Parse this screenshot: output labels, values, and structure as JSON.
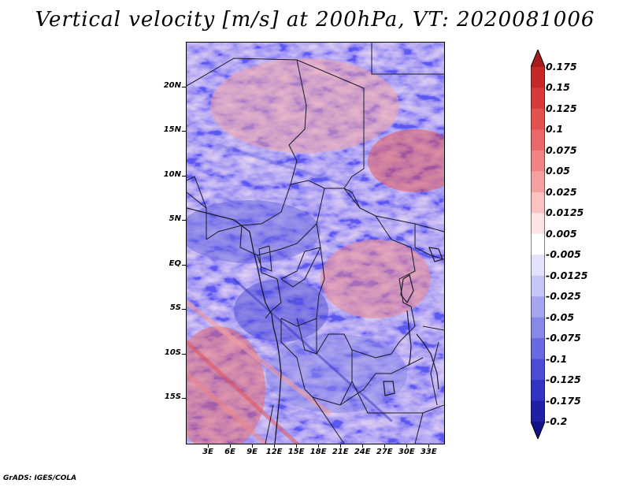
{
  "title": "Vertical velocity [m/s] at 200hPa, VT: 2020081006",
  "footer": "GrADS: IGES/COLA",
  "map": {
    "lat_range": [
      -20,
      25
    ],
    "lon_range": [
      0,
      35
    ],
    "lat_ticks": [
      {
        "value": 20,
        "label": "20N"
      },
      {
        "value": 15,
        "label": "15N"
      },
      {
        "value": 10,
        "label": "10N"
      },
      {
        "value": 5,
        "label": "5N"
      },
      {
        "value": 0,
        "label": "EQ"
      },
      {
        "value": -5,
        "label": "5S"
      },
      {
        "value": -10,
        "label": "10S"
      },
      {
        "value": -15,
        "label": "15S"
      }
    ],
    "lon_ticks": [
      {
        "value": 3,
        "label": "3E"
      },
      {
        "value": 6,
        "label": "6E"
      },
      {
        "value": 9,
        "label": "9E"
      },
      {
        "value": 12,
        "label": "12E"
      },
      {
        "value": 15,
        "label": "15E"
      },
      {
        "value": 18,
        "label": "18E"
      },
      {
        "value": 21,
        "label": "21E"
      },
      {
        "value": 24,
        "label": "24E"
      },
      {
        "value": 27,
        "label": "27E"
      },
      {
        "value": 30,
        "label": "30E"
      },
      {
        "value": 33,
        "label": "33E"
      }
    ]
  },
  "colorbar": {
    "labels": [
      "0.175",
      "0.15",
      "0.125",
      "0.1",
      "0.075",
      "0.05",
      "0.025",
      "0.0125",
      "0.005",
      "-0.005",
      "-0.0125",
      "-0.025",
      "-0.05",
      "-0.075",
      "-0.1",
      "-0.125",
      "-0.175",
      "-0.2"
    ],
    "colors": [
      "#a81c1c",
      "#c42828",
      "#d63a3a",
      "#e25050",
      "#ea6868",
      "#f08484",
      "#f5a0a0",
      "#fbc2c2",
      "#fde3e3",
      "#ffffff",
      "#e2e2fb",
      "#c6c6f5",
      "#a6a6ef",
      "#8888e8",
      "#6a6ae0",
      "#4c4cd6",
      "#3434c4",
      "#2020a6",
      "#12128a"
    ]
  }
}
